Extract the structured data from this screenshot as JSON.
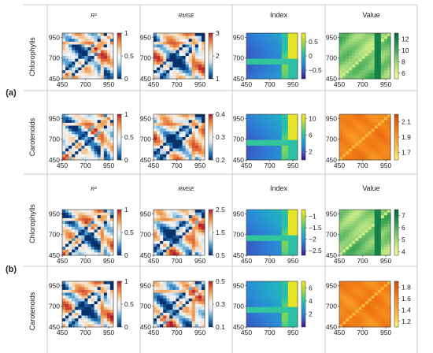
{
  "figure": {
    "row_labels": [
      "Chlorophylls",
      "Carotenoids",
      "Chlorophylls",
      "Carotenoids"
    ],
    "column_headers": [
      "R²",
      "RMSE",
      "Index",
      "Value"
    ],
    "panel_tags": [
      "(a)",
      "(b)"
    ]
  },
  "chart_data": {
    "type": "heatmap",
    "x_ticks": [
      450,
      700,
      950
    ],
    "y_ticks": [
      450,
      700,
      950
    ],
    "xlim": [
      450,
      1000
    ],
    "ylim": [
      450,
      1000
    ],
    "panels": [
      {
        "panel": "(a)",
        "row": "Chlorophylls",
        "column": "R²",
        "colormap": "rdbu",
        "colorbar": {
          "range": [
            0,
            1
          ],
          "ticks": [
            "1",
            "0.5",
            "0"
          ]
        }
      },
      {
        "panel": "(a)",
        "row": "Chlorophylls",
        "column": "RMSE",
        "colormap": "rdbu",
        "colorbar": {
          "range": [
            1,
            3
          ],
          "ticks": [
            "3",
            "2",
            "1"
          ]
        }
      },
      {
        "panel": "(a)",
        "row": "Chlorophylls",
        "column": "Index",
        "colormap": "viridis",
        "colorbar": {
          "range": [
            -0.8,
            0.8
          ],
          "ticks": [
            "0.5",
            "0",
            "−0.5"
          ]
        }
      },
      {
        "panel": "(a)",
        "row": "Chlorophylls",
        "column": "Value",
        "colormap": "ylgn",
        "colorbar": {
          "range": [
            5,
            13
          ],
          "ticks": [
            "12",
            "10",
            "8",
            "6"
          ]
        }
      },
      {
        "panel": "(a)",
        "row": "Carotenoids",
        "column": "R²",
        "colormap": "rdbu",
        "colorbar": {
          "range": [
            0,
            1
          ],
          "ticks": [
            "1",
            "0.5",
            "0"
          ]
        }
      },
      {
        "panel": "(a)",
        "row": "Carotenoids",
        "column": "RMSE",
        "colormap": "rdbu",
        "colorbar": {
          "range": [
            0.2,
            0.4
          ],
          "ticks": [
            "0.4",
            "0.3",
            "0.2"
          ]
        }
      },
      {
        "panel": "(a)",
        "row": "Carotenoids",
        "column": "Index",
        "colormap": "viridis",
        "colorbar": {
          "range": [
            0,
            11
          ],
          "ticks": [
            "10",
            "6",
            "2"
          ]
        }
      },
      {
        "panel": "(a)",
        "row": "Carotenoids",
        "column": "Value",
        "colormap": "ylorbr",
        "colorbar": {
          "range": [
            1.6,
            2.2
          ],
          "ticks": [
            "2.1",
            "1.9",
            "1.7"
          ]
        }
      },
      {
        "panel": "(b)",
        "row": "Chlorophylls",
        "column": "R²",
        "colormap": "rdbu",
        "colorbar": {
          "range": [
            0,
            1
          ],
          "ticks": [
            "1",
            "0.5",
            "0"
          ]
        }
      },
      {
        "panel": "(b)",
        "row": "Chlorophylls",
        "column": "RMSE",
        "colormap": "rdbu",
        "colorbar": {
          "range": [
            0.5,
            2.5
          ],
          "ticks": [
            "2.5",
            "1.5",
            "0.5"
          ]
        }
      },
      {
        "panel": "(b)",
        "row": "Chlorophylls",
        "column": "Index",
        "colormap": "viridis",
        "colorbar": {
          "range": [
            -2.7,
            -0.7
          ],
          "ticks": [
            "−1",
            "−1.5",
            "−2",
            "−2.5"
          ]
        }
      },
      {
        "panel": "(b)",
        "row": "Chlorophylls",
        "column": "Value",
        "colormap": "ylgn",
        "colorbar": {
          "range": [
            3.7,
            7.5
          ],
          "ticks": [
            "7",
            "6",
            "5",
            "4"
          ]
        }
      },
      {
        "panel": "(b)",
        "row": "Carotenoids",
        "column": "R²",
        "colormap": "rdbu",
        "colorbar": {
          "range": [
            0,
            1
          ],
          "ticks": [
            "1",
            "0.5",
            "0"
          ]
        }
      },
      {
        "panel": "(b)",
        "row": "Carotenoids",
        "column": "RMSE",
        "colormap": "rdbu",
        "colorbar": {
          "range": [
            0.1,
            0.5
          ],
          "ticks": [
            "0.5",
            "0.3",
            "0.1"
          ]
        }
      },
      {
        "panel": "(b)",
        "row": "Carotenoids",
        "column": "Index",
        "colormap": "viridis",
        "colorbar": {
          "range": [
            0,
            7
          ],
          "ticks": [
            "6",
            "4",
            "2"
          ]
        }
      },
      {
        "panel": "(b)",
        "row": "Carotenoids",
        "column": "Value",
        "colormap": "ylorbr",
        "colorbar": {
          "range": [
            1.1,
            1.9
          ],
          "ticks": [
            "1.8",
            "1.6",
            "1.4",
            "1.2"
          ]
        }
      }
    ]
  }
}
